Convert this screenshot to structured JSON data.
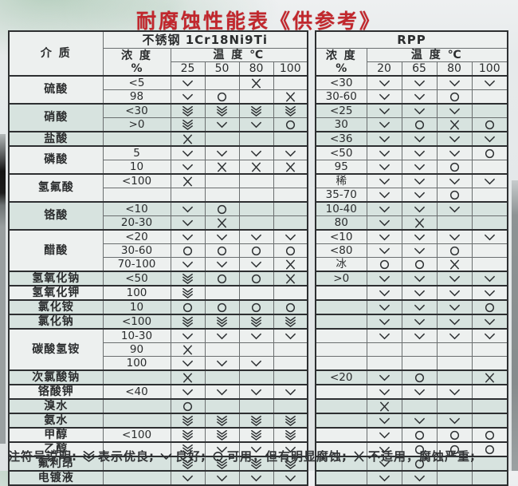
{
  "title": "耐腐蚀性能表《供参考》",
  "header": {
    "medium_label": "介  质",
    "steel": {
      "title": "不锈钢 1Cr18Ni9Ti",
      "conc_label": "浓 度",
      "conc_unit": "%",
      "temp_label": "温 度 ℃",
      "temps": [
        "25",
        "50",
        "80",
        "100"
      ]
    },
    "rpp": {
      "title": "RPP",
      "conc_label": "浓 度",
      "conc_unit": "%",
      "temp_label": "温 度 ℃",
      "temps": [
        "20",
        "65",
        "80",
        "100"
      ]
    }
  },
  "symbols": {
    "VV": "excellent",
    "V": "good",
    "O": "usable",
    "X": "not-suitable"
  },
  "groups": [
    {
      "label": "硫酸",
      "tint": false,
      "rows": [
        {
          "c1": "<5",
          "s1": [
            "V",
            "",
            "X",
            ""
          ],
          "c2": "<30",
          "s2": [
            "V",
            "V",
            "V",
            "V"
          ]
        },
        {
          "c1": "98",
          "s1": [
            "V",
            "O",
            "",
            "X"
          ],
          "c2": "30-60",
          "s2": [
            "V",
            "V",
            "O",
            ""
          ]
        }
      ]
    },
    {
      "label": "硝酸",
      "tint": true,
      "rows": [
        {
          "c1": "<30",
          "s1": [
            "VV",
            "VV",
            "VV",
            "VV"
          ],
          "c2": "<25",
          "s2": [
            "V",
            "V",
            "V",
            ""
          ]
        },
        {
          "c1": ">0",
          "s1": [
            "VV",
            "V",
            "V",
            "O"
          ],
          "c2": "30",
          "s2": [
            "V",
            "O",
            "X",
            "O"
          ]
        }
      ]
    },
    {
      "label": "盐酸",
      "tint": true,
      "rows": [
        {
          "c1": "",
          "s1": [
            "X",
            "",
            "",
            ""
          ],
          "c2": "<36",
          "s2": [
            "V",
            "V",
            "V",
            "V"
          ]
        }
      ]
    },
    {
      "label": "磷酸",
      "tint": false,
      "rows": [
        {
          "c1": "5",
          "s1": [
            "V",
            "V",
            "V",
            "V"
          ],
          "c2": "<50",
          "s2": [
            "V",
            "V",
            "V",
            "O"
          ]
        },
        {
          "c1": "10",
          "s1": [
            "V",
            "X",
            "X",
            "X"
          ],
          "c2": "95",
          "s2": [
            "V",
            "V",
            "O",
            ""
          ]
        }
      ]
    },
    {
      "label": "氢氟酸",
      "tint": false,
      "rows": [
        {
          "c1": "<100",
          "s1": [
            "X",
            "",
            "",
            ""
          ],
          "c2": "稀",
          "s2": [
            "V",
            "V",
            "V",
            "V"
          ]
        },
        {
          "c1": "",
          "s1": [
            "",
            "",
            "",
            ""
          ],
          "c2": "35-70",
          "s2": [
            "V",
            "V",
            "O",
            ""
          ]
        }
      ]
    },
    {
      "label": "铬酸",
      "tint": true,
      "rows": [
        {
          "c1": "<10",
          "s1": [
            "V",
            "O",
            "",
            ""
          ],
          "c2": "10-40",
          "s2": [
            "V",
            "V",
            "V",
            ""
          ]
        },
        {
          "c1": "20-30",
          "s1": [
            "V",
            "X",
            "",
            ""
          ],
          "c2": "80",
          "s2": [
            "V",
            "X",
            "",
            ""
          ]
        }
      ]
    },
    {
      "label": "醋酸",
      "tint": false,
      "rows": [
        {
          "c1": "<20",
          "s1": [
            "V",
            "V",
            "V",
            "V"
          ],
          "c2": "<10",
          "s2": [
            "V",
            "V",
            "V",
            "V"
          ]
        },
        {
          "c1": "30-60",
          "s1": [
            "O",
            "O",
            "O",
            "O"
          ],
          "c2": "<80",
          "s2": [
            "V",
            "V",
            "O",
            ""
          ]
        },
        {
          "c1": "70-100",
          "s1": [
            "V",
            "V",
            "V",
            "X"
          ],
          "c2": "冰",
          "s2": [
            "O",
            "O",
            "X",
            ""
          ]
        }
      ]
    },
    {
      "label": "氢氧化钠",
      "tint": true,
      "rows": [
        {
          "c1": "<50",
          "s1": [
            "VV",
            "O",
            "O",
            "X"
          ],
          "c2": ">0",
          "s2": [
            "V",
            "V",
            "V",
            "V"
          ]
        }
      ]
    },
    {
      "label": "氢氧化钾",
      "tint": false,
      "rows": [
        {
          "c1": "100",
          "s1": [
            "VV",
            "",
            "",
            ""
          ],
          "c2": "",
          "s2": [
            "V",
            "V",
            "V",
            "V"
          ]
        }
      ]
    },
    {
      "label": "氯化铵",
      "tint": true,
      "rows": [
        {
          "c1": "10",
          "s1": [
            "O",
            "O",
            "O",
            "O"
          ],
          "c2": "",
          "s2": [
            "V",
            "V",
            "V",
            "O"
          ]
        }
      ]
    },
    {
      "label": "氯化钠",
      "tint": true,
      "rows": [
        {
          "c1": "<100",
          "s1": [
            "VV",
            "VV",
            "VV",
            "VV"
          ],
          "c2": "",
          "s2": [
            "V",
            "V",
            "V",
            "V"
          ]
        }
      ]
    },
    {
      "label": "碳酸氢铵",
      "tint": false,
      "rows": [
        {
          "c1": "10-30",
          "s1": [
            "V",
            "V",
            "V",
            "V"
          ],
          "c2": "",
          "s2": [
            "V",
            "V",
            "V",
            "V"
          ]
        },
        {
          "c1": "90",
          "s1": [
            "X",
            "",
            "",
            ""
          ],
          "c2": "",
          "s2": [
            "",
            "",
            "",
            ""
          ]
        },
        {
          "c1": "100",
          "s1": [
            "V",
            "V",
            "V",
            ""
          ],
          "c2": "",
          "s2": [
            "",
            "",
            "",
            ""
          ]
        }
      ]
    },
    {
      "label": "次氯酸钠",
      "tint": true,
      "rows": [
        {
          "c1": "",
          "s1": [
            "X",
            "",
            "",
            ""
          ],
          "c2": "<20",
          "s2": [
            "V",
            "O",
            "",
            "X"
          ]
        }
      ]
    },
    {
      "label": "铬酸钾",
      "tint": false,
      "rows": [
        {
          "c1": "<40",
          "s1": [
            "V",
            "V",
            "V",
            "V"
          ],
          "c2": "",
          "s2": [
            "V",
            "V",
            "V",
            ""
          ]
        }
      ]
    },
    {
      "label": "溴水",
      "tint": true,
      "rows": [
        {
          "c1": "",
          "s1": [
            "O",
            "",
            "",
            ""
          ],
          "c2": "",
          "s2": [
            "X",
            "",
            "",
            ""
          ]
        }
      ]
    },
    {
      "label": "氨水",
      "tint": true,
      "rows": [
        {
          "c1": "",
          "s1": [
            "VV",
            "VV",
            "VV",
            "VV"
          ],
          "c2": "",
          "s2": [
            "V",
            "V",
            "V",
            ""
          ]
        }
      ]
    },
    {
      "label": "甲醇",
      "tint": false,
      "rows": [
        {
          "c1": "<100",
          "s1": [
            "VV",
            "VV",
            "VV",
            "VV"
          ],
          "c2": "",
          "s2": [
            "V",
            "O",
            "O",
            "O"
          ]
        }
      ]
    },
    {
      "label": "乙醇",
      "tint": false,
      "rows": [
        {
          "c1": "",
          "s1": [
            "VV",
            "V",
            "V",
            "V"
          ],
          "c2": "",
          "s2": [
            "V",
            "O",
            "O",
            "O"
          ]
        }
      ]
    },
    {
      "label": "氟利昂",
      "tint": true,
      "rows": [
        {
          "c1": "",
          "s1": [
            "VV",
            "VV",
            "VV",
            "VV"
          ],
          "c2": "",
          "s2": [
            "V",
            "O",
            "",
            ""
          ]
        }
      ]
    },
    {
      "label": "电镀液",
      "tint": true,
      "rows": [
        {
          "c1": "",
          "s1": [
            "V",
            "V",
            "V",
            "V"
          ],
          "c2": "",
          "s2": [
            "V",
            "V",
            "",
            ""
          ]
        }
      ]
    }
  ],
  "legend": {
    "prefix": "注符号说明:",
    "items": [
      {
        "symbol": "VV",
        "text": "表示优良;"
      },
      {
        "symbol": "V",
        "text": "良好;"
      },
      {
        "symbol": "O",
        "text": "可用，但有明显腐蚀;"
      },
      {
        "symbol": "X",
        "text": "不适用，腐蚀严重;"
      }
    ]
  },
  "colors": {
    "title_red": "#c1272d",
    "row_tint": "#d7e3df",
    "paper": "#edf0ef",
    "border_dark": "#2d2f31",
    "border_light": "#6a6e6f"
  }
}
